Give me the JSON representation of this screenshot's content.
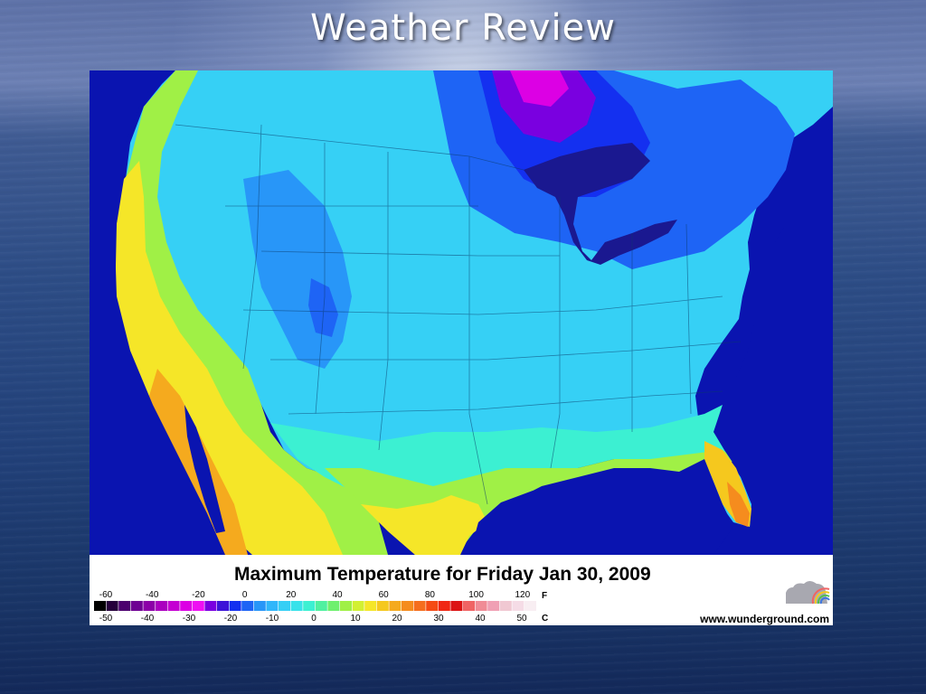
{
  "slide": {
    "title": "Weather  Review"
  },
  "map": {
    "legend_title": "Maximum Temperature for Friday Jan 30, 2009",
    "fahrenheit_ticks": [
      "-60",
      "-40",
      "-20",
      "0",
      "20",
      "40",
      "60",
      "80",
      "100",
      "120"
    ],
    "fahrenheit_unit": "F",
    "celsius_ticks": [
      "-50",
      "-40",
      "-30",
      "-20",
      "-10",
      "0",
      "10",
      "20",
      "30",
      "40",
      "50"
    ],
    "celsius_unit": "C",
    "credit": "www.wunderground.com",
    "color_scale": [
      "#000000",
      "#26003c",
      "#4b006e",
      "#6e0093",
      "#8c00a8",
      "#aa00bf",
      "#c400d2",
      "#dc00e4",
      "#ee10f2",
      "#7a00e0",
      "#3c14d8",
      "#1430f0",
      "#1e64f5",
      "#2896f8",
      "#30b6fa",
      "#36cff5",
      "#38e2ea",
      "#3cf0d2",
      "#50f0a0",
      "#6ef06e",
      "#a0f046",
      "#d2f032",
      "#f5e628",
      "#f5c81e",
      "#f5aa1e",
      "#f58c1e",
      "#f56e1e",
      "#f54b14",
      "#f02814",
      "#dc1414",
      "#f06464",
      "#f08c96",
      "#f0a0b4",
      "#f0c8d2",
      "#f5dce6",
      "#f8eef2"
    ]
  }
}
